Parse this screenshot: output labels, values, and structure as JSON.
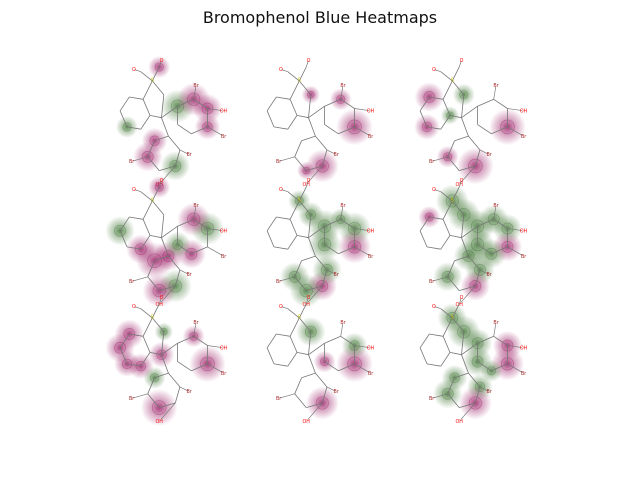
{
  "figure": {
    "title": "Bromophenol Blue Heatmaps"
  },
  "panels": [
    {
      "row": 1,
      "col": 1,
      "labels": [
        "O",
        "S",
        "O",
        "Br",
        "OH",
        "Br",
        "Br",
        "Br",
        "OH"
      ]
    },
    {
      "row": 1,
      "col": 2,
      "labels": [
        "O",
        "S",
        "O",
        "Br",
        "OH",
        "Br",
        "Br",
        "Br",
        "OH"
      ]
    },
    {
      "row": 1,
      "col": 3,
      "labels": [
        "O",
        "S",
        "O",
        "Br",
        "OH",
        "Br",
        "Br",
        "Br",
        "OH"
      ]
    },
    {
      "row": 2,
      "col": 1,
      "labels": [
        "O",
        "S",
        "O",
        "Br",
        "OH",
        "Br",
        "Br",
        "Br",
        "OH"
      ]
    },
    {
      "row": 2,
      "col": 2,
      "labels": [
        "O",
        "S",
        "O",
        "Br",
        "OH",
        "Br",
        "Br",
        "Br",
        "OH"
      ]
    },
    {
      "row": 2,
      "col": 3,
      "labels": [
        "O",
        "S",
        "O",
        "Br",
        "OH",
        "Br",
        "Br",
        "Br",
        "OH"
      ]
    },
    {
      "row": 3,
      "col": 1,
      "labels": [
        "O",
        "S",
        "O",
        "Br",
        "OH",
        "Br",
        "Br",
        "Br",
        "OH"
      ]
    },
    {
      "row": 3,
      "col": 2,
      "labels": [
        "O",
        "S",
        "O",
        "Br",
        "OH",
        "Br",
        "Br",
        "Br",
        "OH"
      ]
    },
    {
      "row": 3,
      "col": 3,
      "labels": [
        "O",
        "S",
        "O",
        "Br",
        "OH",
        "Br",
        "Br",
        "Br",
        "OH"
      ]
    }
  ],
  "colors": {
    "positive": "#8e0152",
    "negative": "#276419",
    "bond": "#777777",
    "oxygen": "#ff0d0d",
    "sulfur": "#cccc00",
    "bromine": "#a62929"
  }
}
